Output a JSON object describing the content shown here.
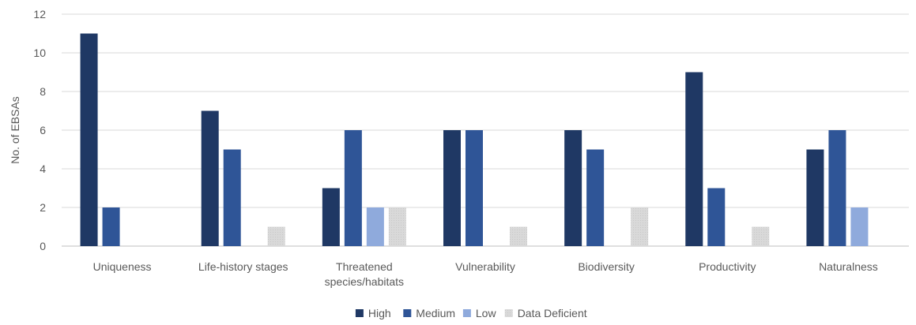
{
  "chart_data": {
    "type": "bar",
    "ylabel": "No. of EBSAs",
    "ylim": [
      0,
      12
    ],
    "yticks": [
      0,
      2,
      4,
      6,
      8,
      10,
      12
    ],
    "grid": true,
    "legend_position": "bottom",
    "categories": [
      [
        "Uniqueness"
      ],
      [
        "Life-history stages"
      ],
      [
        "Threatened",
        "species/habitats"
      ],
      [
        "Vulnerability"
      ],
      [
        "Biodiversity"
      ],
      [
        "Productivity"
      ],
      [
        "Naturalness"
      ]
    ],
    "series": [
      {
        "name": "High",
        "color": "#1f3864",
        "values": [
          11,
          7,
          3,
          6,
          6,
          9,
          5
        ]
      },
      {
        "name": "Medium",
        "color": "#2f5597",
        "values": [
          2,
          5,
          6,
          6,
          5,
          3,
          6
        ]
      },
      {
        "name": "Low",
        "color": "#8faadc",
        "values": [
          0,
          0,
          2,
          0,
          0,
          0,
          2
        ]
      },
      {
        "name": "Data Deficient",
        "color": "#d9d9d9",
        "values": [
          0,
          1,
          2,
          1,
          2,
          1,
          0
        ]
      }
    ]
  }
}
